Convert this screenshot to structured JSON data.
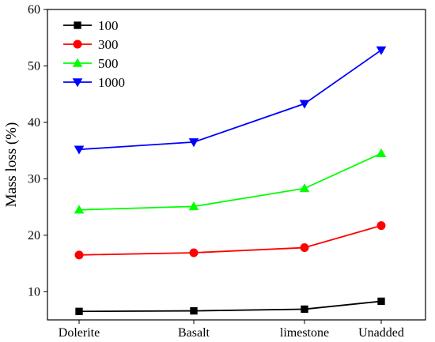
{
  "chart_data": {
    "type": "line",
    "title": "",
    "xlabel": "",
    "ylabel": "Mass loss (%)",
    "ylim": [
      5,
      60
    ],
    "yticks": [
      10,
      20,
      30,
      40,
      50,
      60
    ],
    "categories": [
      "Dolerite",
      "Basalt",
      "limestone",
      "Unadded"
    ],
    "legend_position": "top-left",
    "grid": false,
    "series": [
      {
        "name": "100",
        "color": "#000000",
        "marker": "square",
        "values": [
          6.5,
          6.6,
          6.9,
          8.3
        ]
      },
      {
        "name": "300",
        "color": "#ff0000",
        "marker": "circle",
        "values": [
          16.5,
          16.9,
          17.8,
          21.7
        ]
      },
      {
        "name": "500",
        "color": "#00ff00",
        "marker": "triangle-up",
        "values": [
          24.5,
          25.1,
          28.3,
          34.5
        ]
      },
      {
        "name": "1000",
        "color": "#0000ff",
        "marker": "triangle-down",
        "values": [
          35.2,
          36.5,
          43.3,
          52.8
        ]
      }
    ]
  }
}
